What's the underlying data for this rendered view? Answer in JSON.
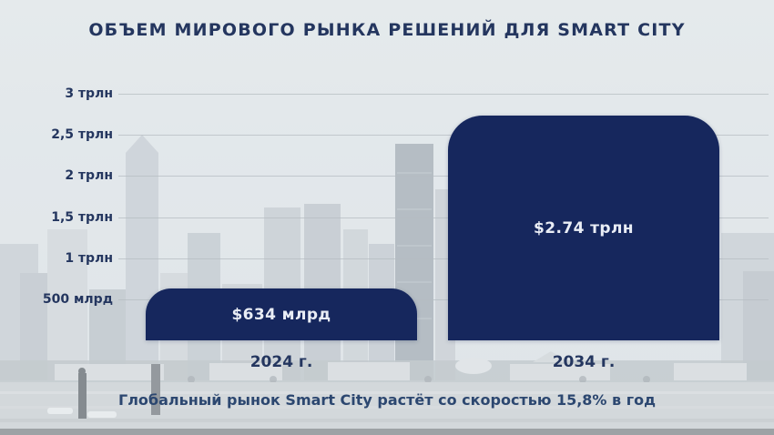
{
  "slide": {
    "title": "ОБЪЕМ МИРОВОГО РЫНКА РЕШЕНИЙ ДЛЯ SMART CITY",
    "caption": "Глобальный рынок Smart City растёт со скоростью 15,8% в год"
  },
  "colors": {
    "bar_navy": "#16275d",
    "text_navy": "#24365f",
    "caption_navy": "#2c4770",
    "bar_label_text": "#e9edf5",
    "gridline": "#b6bcc2",
    "background_sky": "#dfe4e7"
  },
  "chart_data": {
    "type": "bar",
    "title": "ОБЪЕМ МИРОВОГО РЫНКА РЕШЕНИЙ ДЛЯ SMART CITY",
    "categories": [
      "2024 г.",
      "2034 г."
    ],
    "values": [
      0.634,
      2.74
    ],
    "unit": "трлн USD",
    "value_labels": [
      "$634 млрд",
      "$2.74 трлн"
    ],
    "ytick_labels": [
      "3 трлн",
      "2,5 трлн",
      "2 трлн",
      "1,5 трлн",
      "1 трлн",
      "500 млрд"
    ],
    "ytick_values": [
      3,
      2.5,
      2,
      1.5,
      1,
      0.5
    ],
    "ylim": [
      0,
      3.3
    ],
    "grid": true,
    "legend": "none",
    "annotation": "Глобальный рынок Smart City растёт со скоростью 15,8% в год",
    "growth_rate": "15,8% в год"
  }
}
